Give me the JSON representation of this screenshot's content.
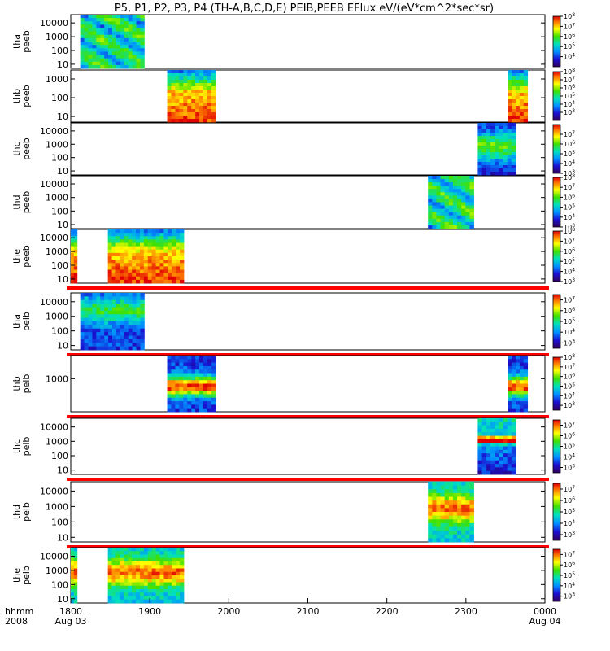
{
  "title": "P5, P1, P2, P3, P4 (TH-A,B,C,D,E) PEIB,PEEB EFlux eV/(eV*cm^2*sec*sr)",
  "chart_data": {
    "type": "heatmap",
    "title": "P5, P1, P2, P3, P4 (TH-A,B,C,D,E) PEIB,PEEB EFlux eV/(eV*cm^2*sec*sr)",
    "xlabel": "hhmm",
    "x_row2_label": "2008",
    "x_ticks": [
      "1800",
      "1900",
      "2000",
      "2100",
      "2200",
      "2300",
      "0000"
    ],
    "x_ticks_row2": [
      "Aug 03",
      "",
      "",
      "",
      "",
      "",
      "Aug 04"
    ],
    "xlim_hours": [
      18.0,
      24.0
    ],
    "colorscale": "rainbow",
    "panels": [
      {
        "name": "tha peeb",
        "ylabel": [
          "tha",
          "peeb"
        ],
        "yticks": [
          "10000",
          "1000",
          "100",
          "10"
        ],
        "ylim": [
          5,
          40000
        ],
        "cb_ticks": [
          "10^8",
          "10^7",
          "10^6",
          "10^5",
          "10^4"
        ],
        "cb_range": [
          3,
          8
        ],
        "data": [
          {
            "t0": 18.12,
            "t1": 18.93,
            "kind": "eesa_hot"
          }
        ],
        "red_bar": false
      },
      {
        "name": "thb peeb",
        "ylabel": [
          "thb",
          "peeb"
        ],
        "yticks": [
          "1000",
          "100",
          "10"
        ],
        "ylim": [
          5,
          3000
        ],
        "cb_ticks": [
          "10^8",
          "10^7",
          "10^6",
          "10^5",
          "10^4",
          "10^3"
        ],
        "cb_range": [
          2,
          8
        ],
        "data": [
          {
            "t0": 19.22,
            "t1": 19.83,
            "kind": "eesa_cold"
          },
          {
            "t0": 23.53,
            "t1": 23.78,
            "kind": "eesa_cold"
          }
        ],
        "red_bar": false
      },
      {
        "name": "thc peeb",
        "ylabel": [
          "thc",
          "peeb"
        ],
        "yticks": [
          "10000",
          "1000",
          "100",
          "10"
        ],
        "ylim": [
          5,
          40000
        ],
        "cb_ticks": [
          "10^7",
          "10^6",
          "10^5",
          "10^4",
          "10^3"
        ],
        "cb_range": [
          3,
          8
        ],
        "data": [
          {
            "t0": 23.15,
            "t1": 23.63,
            "kind": "eesa_sheet"
          }
        ],
        "red_bar": false
      },
      {
        "name": "thd peeb",
        "ylabel": [
          "thd",
          "peeb"
        ],
        "yticks": [
          "10000",
          "1000",
          "100",
          "10"
        ],
        "ylim": [
          5,
          40000
        ],
        "cb_ticks": [
          "10^8",
          "10^7",
          "10^6",
          "10^5",
          "10^4",
          "10^3"
        ],
        "cb_range": [
          3,
          8
        ],
        "data": [
          {
            "t0": 22.52,
            "t1": 23.1,
            "kind": "eesa_hot"
          }
        ],
        "red_bar": false
      },
      {
        "name": "the peeb",
        "ylabel": [
          "the",
          "peeb"
        ],
        "yticks": [
          "10000",
          "1000",
          "100",
          "10"
        ],
        "ylim": [
          5,
          40000
        ],
        "cb_ticks": [
          "10^8",
          "10^7",
          "10^6",
          "10^5",
          "10^4",
          "10^3"
        ],
        "cb_range": [
          3,
          8
        ],
        "data": [
          {
            "t0": 18.0,
            "t1": 18.08,
            "kind": "eesa_cold"
          },
          {
            "t0": 18.47,
            "t1": 19.43,
            "kind": "eesa_cold"
          }
        ],
        "red_bar": true
      },
      {
        "name": "tha peib",
        "ylabel": [
          "tha",
          "peib"
        ],
        "yticks": [
          "10000",
          "1000",
          "100",
          "10"
        ],
        "ylim": [
          5,
          40000
        ],
        "cb_ticks": [
          "10^7",
          "10^6",
          "10^5",
          "10^4",
          "10^3"
        ],
        "cb_range": [
          2.5,
          7.5
        ],
        "data": [
          {
            "t0": 18.12,
            "t1": 18.93,
            "kind": "iesa_sheet"
          }
        ],
        "red_bar": true
      },
      {
        "name": "thb peib",
        "ylabel": [
          "thb",
          "peib"
        ],
        "yticks": [
          "1000"
        ],
        "ylim": [
          5,
          40000
        ],
        "cb_ticks": [
          "10^8",
          "10^7",
          "10^6",
          "10^5",
          "10^4",
          "10^3"
        ],
        "cb_range": [
          2.5,
          8
        ],
        "data": [
          {
            "t0": 19.22,
            "t1": 19.83,
            "kind": "iesa_mid"
          },
          {
            "t0": 23.53,
            "t1": 23.78,
            "kind": "iesa_mid"
          }
        ],
        "red_bar": true
      },
      {
        "name": "thc peib",
        "ylabel": [
          "thc",
          "peib"
        ],
        "yticks": [
          "10000",
          "1000",
          "100",
          "10"
        ],
        "ylim": [
          5,
          40000
        ],
        "cb_ticks": [
          "10^7",
          "10^6",
          "10^5",
          "10^4",
          "10^3"
        ],
        "cb_range": [
          2.5,
          7.5
        ],
        "data": [
          {
            "t0": 23.15,
            "t1": 23.63,
            "kind": "iesa_cold"
          }
        ],
        "red_bar": true
      },
      {
        "name": "thd peib",
        "ylabel": [
          "thd",
          "peib"
        ],
        "yticks": [
          "10000",
          "1000",
          "100",
          "10"
        ],
        "ylim": [
          5,
          40000
        ],
        "cb_ticks": [
          "10^7",
          "10^6",
          "10^5",
          "10^4",
          "10^3"
        ],
        "cb_range": [
          2.5,
          7.5
        ],
        "data": [
          {
            "t0": 22.52,
            "t1": 23.1,
            "kind": "iesa_hot"
          }
        ],
        "red_bar": true
      },
      {
        "name": "the peib",
        "ylabel": [
          "the",
          "peib"
        ],
        "yticks": [
          "10000",
          "1000",
          "100",
          "10"
        ],
        "ylim": [
          5,
          40000
        ],
        "cb_ticks": [
          "10^7",
          "10^6",
          "10^5",
          "10^4",
          "10^3"
        ],
        "cb_range": [
          2.5,
          7.5
        ],
        "data": [
          {
            "t0": 18.0,
            "t1": 18.08,
            "kind": "iesa_hot"
          },
          {
            "t0": 18.47,
            "t1": 19.43,
            "kind": "iesa_hot"
          }
        ],
        "red_bar": false
      }
    ]
  }
}
